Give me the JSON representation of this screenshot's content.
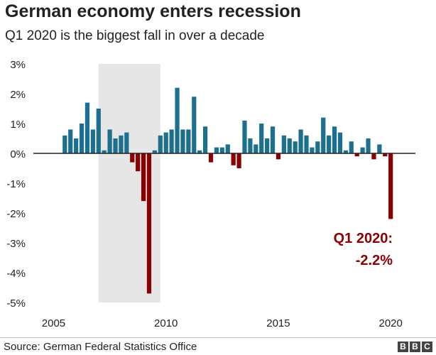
{
  "title": "German economy enters recession",
  "subtitle": "Q1 2020 is the biggest fall in over a decade",
  "source": "Source: German Federal Statistics Office",
  "logo": [
    "B",
    "B",
    "C"
  ],
  "colors": {
    "positive": "#1d6f8f",
    "negative": "#8b0000",
    "shade": "#e6e6e6",
    "axis": "#222222",
    "annotation": "#8b0000"
  },
  "annotation": {
    "line1": "Q1 2020:",
    "line2": "-2.2%"
  },
  "chart_data": {
    "type": "bar",
    "xlabel": "",
    "ylabel": "",
    "ylim": [
      -5,
      3
    ],
    "yticks": [
      "3%",
      "2%",
      "1%",
      "0%",
      "-1%",
      "-2%",
      "-3%",
      "-4%",
      "-5%"
    ],
    "ytick_values": [
      3,
      2,
      1,
      0,
      -1,
      -2,
      -3,
      -4,
      -5
    ],
    "xticks": [
      "2005",
      "2010",
      "2015",
      "2020"
    ],
    "xtick_values": [
      2005,
      2010,
      2015,
      2020
    ],
    "grid": false,
    "shaded_period": [
      2007,
      2009.75
    ],
    "categories": [
      "2005 Q3",
      "2005 Q4",
      "2006 Q1",
      "2006 Q2",
      "2006 Q3",
      "2006 Q4",
      "2007 Q1",
      "2007 Q2",
      "2007 Q3",
      "2007 Q4",
      "2008 Q1",
      "2008 Q2",
      "2008 Q3",
      "2008 Q4",
      "2009 Q1",
      "2009 Q2",
      "2009 Q3",
      "2009 Q4",
      "2010 Q1",
      "2010 Q2",
      "2010 Q3",
      "2010 Q4",
      "2011 Q1",
      "2011 Q2",
      "2011 Q3",
      "2011 Q4",
      "2012 Q1",
      "2012 Q2",
      "2012 Q3",
      "2012 Q4",
      "2013 Q1",
      "2013 Q2",
      "2013 Q3",
      "2013 Q4",
      "2014 Q1",
      "2014 Q2",
      "2014 Q3",
      "2014 Q4",
      "2015 Q1",
      "2015 Q2",
      "2015 Q3",
      "2015 Q4",
      "2016 Q1",
      "2016 Q2",
      "2016 Q3",
      "2016 Q4",
      "2017 Q1",
      "2017 Q2",
      "2017 Q3",
      "2017 Q4",
      "2018 Q1",
      "2018 Q2",
      "2018 Q3",
      "2018 Q4",
      "2019 Q1",
      "2019 Q2",
      "2019 Q3",
      "2019 Q4",
      "2020 Q1"
    ],
    "x": [
      2005.5,
      2005.75,
      2006,
      2006.25,
      2006.5,
      2006.75,
      2007,
      2007.25,
      2007.5,
      2007.75,
      2008,
      2008.25,
      2008.5,
      2008.75,
      2009,
      2009.25,
      2009.5,
      2009.75,
      2010,
      2010.25,
      2010.5,
      2010.75,
      2011,
      2011.25,
      2011.5,
      2011.75,
      2012,
      2012.25,
      2012.5,
      2012.75,
      2013,
      2013.25,
      2013.5,
      2013.75,
      2014,
      2014.25,
      2014.5,
      2014.75,
      2015,
      2015.25,
      2015.5,
      2015.75,
      2016,
      2016.25,
      2016.5,
      2016.75,
      2017,
      2017.25,
      2017.5,
      2017.75,
      2018,
      2018.25,
      2018.5,
      2018.75,
      2019,
      2019.25,
      2019.5,
      2019.75,
      2020
    ],
    "values": [
      0.6,
      0.8,
      0.5,
      1.0,
      1.7,
      0.8,
      1.5,
      0.1,
      0.8,
      0.5,
      0.6,
      0.7,
      -0.3,
      -0.6,
      -1.6,
      -4.7,
      0.1,
      0.6,
      0.7,
      0.8,
      2.2,
      0.8,
      0.8,
      1.9,
      0.1,
      0.9,
      -0.3,
      0.2,
      0.2,
      0.3,
      -0.4,
      -0.5,
      1.1,
      0.5,
      0.3,
      1.0,
      0.5,
      0.9,
      -0.2,
      0.6,
      0.5,
      0.4,
      0.8,
      0.6,
      0.2,
      0.4,
      1.2,
      0.6,
      0.9,
      0.7,
      0.1,
      0.4,
      -0.1,
      0.2,
      0.5,
      -0.2,
      0.3,
      -0.1,
      -2.2
    ]
  }
}
